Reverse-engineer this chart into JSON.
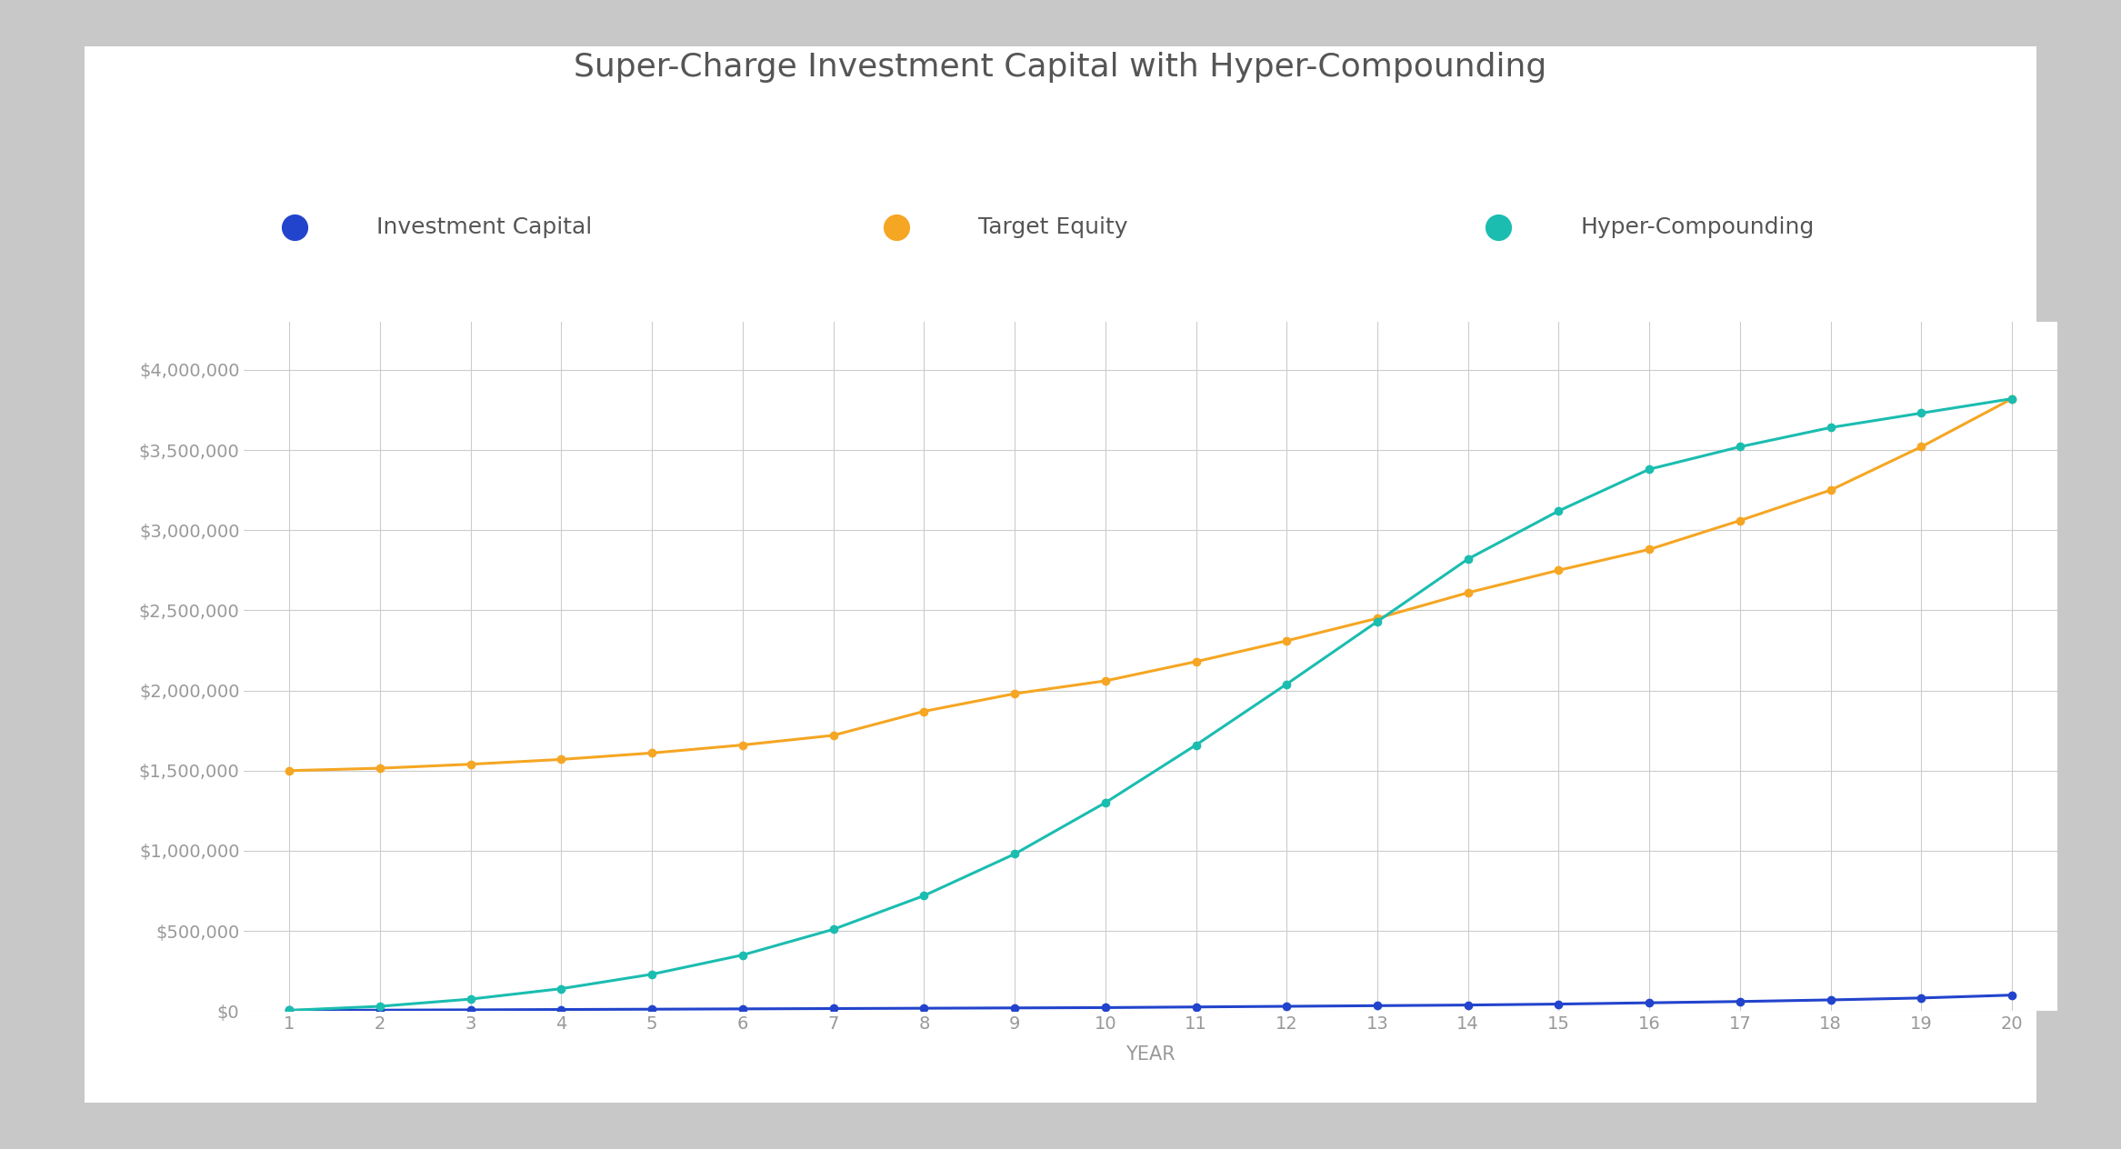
{
  "title": "Super-Charge Investment Capital with Hyper-Compounding",
  "xlabel": "YEAR",
  "ylabel": "",
  "years": [
    1,
    2,
    3,
    4,
    5,
    6,
    7,
    8,
    9,
    10,
    11,
    12,
    13,
    14,
    15,
    16,
    17,
    18,
    19,
    20
  ],
  "investment_capital": [
    5000,
    6000,
    8000,
    10000,
    12000,
    14000,
    16000,
    18000,
    20000,
    22000,
    26000,
    30000,
    34000,
    38000,
    44000,
    52000,
    60000,
    70000,
    82000,
    100000
  ],
  "target_equity": [
    1500000,
    1515000,
    1540000,
    1570000,
    1610000,
    1660000,
    1720000,
    1870000,
    1980000,
    2060000,
    2180000,
    2310000,
    2450000,
    2610000,
    2750000,
    2880000,
    3060000,
    3250000,
    3520000,
    3820000
  ],
  "hyper_compounding": [
    5000,
    30000,
    75000,
    140000,
    230000,
    350000,
    510000,
    720000,
    980000,
    1300000,
    1660000,
    2040000,
    2430000,
    2820000,
    3120000,
    3380000,
    3520000,
    3640000,
    3730000,
    3820000
  ],
  "line_colors": {
    "investment_capital": "#2244CC",
    "target_equity": "#F5A623",
    "hyper_compounding": "#1BBDB0"
  },
  "legend_labels": [
    "Investment Capital",
    "Target Equity",
    "Hyper-Compounding"
  ],
  "ylim": [
    0,
    4300000
  ],
  "ytick_values": [
    0,
    500000,
    1000000,
    1500000,
    2000000,
    2500000,
    3000000,
    3500000,
    4000000
  ],
  "background_color": "#FFFFFF",
  "card_color": "#FFFFFF",
  "outer_bg": "#C8C8C8",
  "grid_color": "#CCCCCC",
  "title_color": "#555555",
  "label_color": "#999999",
  "legend_text_color": "#555555",
  "title_fontsize": 26,
  "label_fontsize": 15,
  "tick_fontsize": 14,
  "legend_fontsize": 18,
  "marker_size": 6,
  "line_width": 2.2
}
